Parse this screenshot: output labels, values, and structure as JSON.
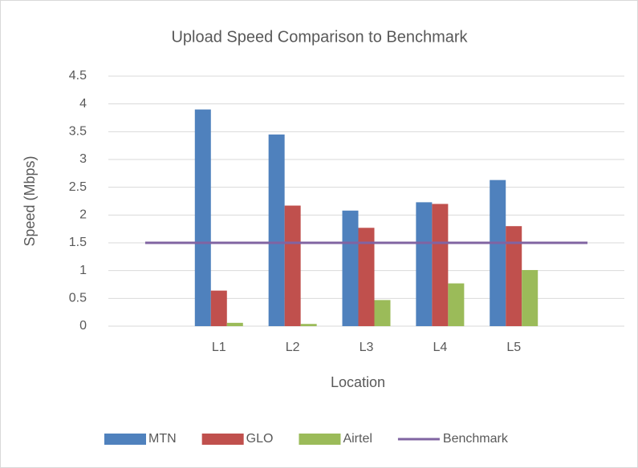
{
  "chart_data": {
    "type": "bar",
    "title": "Upload Speed  Comparison to Benchmark",
    "x_label": "Location",
    "y_label": "Speed (Mbps)",
    "categories": [
      null,
      "L1",
      "L2",
      "L3",
      "L4",
      "L5",
      null
    ],
    "series": [
      {
        "name": "MTN",
        "color": "#4f81bd",
        "values": [
          null,
          3.9,
          3.45,
          2.08,
          2.23,
          2.63,
          null
        ]
      },
      {
        "name": "GLO",
        "color": "#c0504d",
        "values": [
          null,
          0.64,
          2.17,
          1.77,
          2.2,
          1.8,
          null
        ]
      },
      {
        "name": "Airtel",
        "color": "#9bbb59",
        "values": [
          null,
          0.06,
          0.04,
          0.47,
          0.77,
          1.01,
          null
        ]
      },
      {
        "name": "Benchmark",
        "color": "#8064a2",
        "type": "line",
        "values": [
          1.5,
          1.5,
          1.5,
          1.5,
          1.5,
          1.5,
          1.5
        ]
      }
    ],
    "ylim": [
      0,
      4.5
    ],
    "yticks": [
      0,
      0.5,
      1,
      1.5,
      2,
      2.5,
      3,
      3.5,
      4,
      4.5
    ],
    "grid": true,
    "legend": "bottom"
  }
}
